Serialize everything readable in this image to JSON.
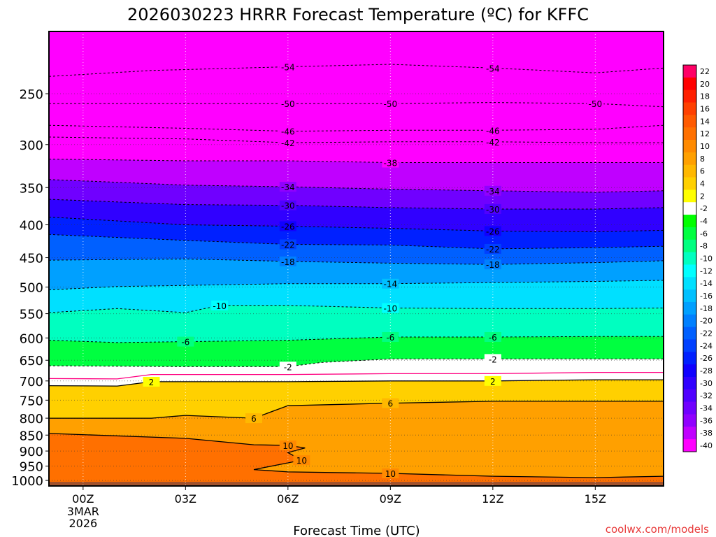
{
  "chart_data": {
    "type": "heatmap",
    "title": "2026030223 HRRR Forecast Temperature (ºC) for KFFC",
    "xlabel": "Forecast Time (UTC)",
    "ylabel": "",
    "credit": "coolwx.com/models",
    "x_ticks": [
      {
        "hour": 0,
        "label": "00Z",
        "sub": [
          "3MAR",
          "2026"
        ]
      },
      {
        "hour": 3,
        "label": "03Z",
        "sub": []
      },
      {
        "hour": 6,
        "label": "06Z",
        "sub": []
      },
      {
        "hour": 9,
        "label": "09Z",
        "sub": []
      },
      {
        "hour": 12,
        "label": "12Z",
        "sub": []
      },
      {
        "hour": 15,
        "label": "15Z",
        "sub": []
      }
    ],
    "xlim": [
      -1,
      17
    ],
    "y_ticks": [
      250,
      300,
      350,
      400,
      450,
      500,
      550,
      600,
      650,
      700,
      750,
      800,
      850,
      900,
      950,
      1000
    ],
    "ylim_hpa": [
      200,
      1020
    ],
    "colorbar": {
      "labels": [
        "22",
        "20",
        "18",
        "16",
        "14",
        "12",
        "10",
        "8",
        "6",
        "4",
        "2",
        "-2",
        "-4",
        "-6",
        "-8",
        "-10",
        "-12",
        "-14",
        "-16",
        "-18",
        "-20",
        "-22",
        "-24",
        "-26",
        "-28",
        "-30",
        "-32",
        "-34",
        "-36",
        "-38",
        "-40"
      ],
      "colors": [
        "#ff0066",
        "#ff0000",
        "#ff2000",
        "#ff4000",
        "#ff5a00",
        "#ff7000",
        "#ff8a00",
        "#ffa000",
        "#ffb800",
        "#ffd000",
        "#ffff00",
        "#ffffff",
        "#00ff00",
        "#00ff40",
        "#00ff80",
        "#00ffc0",
        "#00ffff",
        "#00e0ff",
        "#00c0ff",
        "#00a0ff",
        "#0080ff",
        "#0060ff",
        "#0040ff",
        "#0020ff",
        "#1000ff",
        "#3000ff",
        "#5000ff",
        "#7000ff",
        "#9000ff",
        "#c000ff",
        "#ff00ff"
      ]
    },
    "series": [
      {
        "level": -54,
        "labels": [
          "-54",
          "-54"
        ],
        "points": [
          [
            -1,
            235
          ],
          [
            2,
            230
          ],
          [
            6,
            227
          ],
          [
            9,
            225
          ],
          [
            12,
            228
          ],
          [
            15,
            232
          ],
          [
            17,
            228
          ]
        ]
      },
      {
        "level": -50,
        "labels": [
          "-50",
          "-50",
          "-50"
        ],
        "points": [
          [
            -1,
            259
          ],
          [
            3,
            259
          ],
          [
            6,
            259
          ],
          [
            9,
            259
          ],
          [
            12,
            258
          ],
          [
            15,
            259
          ],
          [
            17,
            262
          ]
        ]
      },
      {
        "level": -46,
        "labels": [
          "-46",
          "-46"
        ],
        "points": [
          [
            -1,
            280
          ],
          [
            3,
            283
          ],
          [
            6,
            286
          ],
          [
            9,
            285
          ],
          [
            12,
            285
          ],
          [
            15,
            284
          ],
          [
            17,
            280
          ]
        ]
      },
      {
        "level": -42,
        "labels": [
          "-42",
          "-42"
        ],
        "points": [
          [
            -1,
            292
          ],
          [
            3,
            294
          ],
          [
            6,
            298
          ],
          [
            9,
            297
          ],
          [
            12,
            297
          ],
          [
            15,
            298
          ],
          [
            17,
            298
          ]
        ]
      },
      {
        "level": -38,
        "labels": [
          "-38"
        ],
        "points": [
          [
            -1,
            316
          ],
          [
            3,
            318
          ],
          [
            6,
            318
          ],
          [
            9,
            320
          ],
          [
            12,
            320
          ],
          [
            15,
            320
          ],
          [
            17,
            320
          ]
        ]
      },
      {
        "level": -34,
        "labels": [
          "-34",
          "-34"
        ],
        "points": [
          [
            -1,
            340
          ],
          [
            3,
            347
          ],
          [
            6,
            349
          ],
          [
            9,
            352
          ],
          [
            12,
            354
          ],
          [
            15,
            356
          ],
          [
            17,
            354
          ]
        ]
      },
      {
        "level": -30,
        "labels": [
          "-30",
          "-30"
        ],
        "points": [
          [
            -1,
            365
          ],
          [
            3,
            372
          ],
          [
            6,
            373
          ],
          [
            9,
            376
          ],
          [
            12,
            378
          ],
          [
            15,
            378
          ],
          [
            17,
            376
          ]
        ]
      },
      {
        "level": -26,
        "labels": [
          "-26",
          "-26"
        ],
        "points": [
          [
            -1,
            389
          ],
          [
            3,
            400
          ],
          [
            6,
            402
          ],
          [
            9,
            405
          ],
          [
            12,
            409
          ],
          [
            15,
            410
          ],
          [
            17,
            408
          ]
        ]
      },
      {
        "level": -22,
        "labels": [
          "-22",
          "-22"
        ],
        "points": [
          [
            -1,
            414
          ],
          [
            3,
            423
          ],
          [
            6,
            429
          ],
          [
            9,
            430
          ],
          [
            12,
            436
          ],
          [
            15,
            434
          ],
          [
            17,
            432
          ]
        ]
      },
      {
        "level": -18,
        "labels": [
          "-18",
          "-18"
        ],
        "points": [
          [
            -1,
            454
          ],
          [
            3,
            452
          ],
          [
            6,
            456
          ],
          [
            9,
            459
          ],
          [
            12,
            461
          ],
          [
            15,
            458
          ],
          [
            17,
            455
          ]
        ]
      },
      {
        "level": -14,
        "labels": [
          "-14"
        ],
        "points": [
          [
            -1,
            505
          ],
          [
            1,
            499
          ],
          [
            3,
            497
          ],
          [
            6,
            494
          ],
          [
            9,
            494
          ],
          [
            12,
            492
          ],
          [
            15,
            490
          ],
          [
            17,
            488
          ]
        ]
      },
      {
        "level": -10,
        "labels": [
          "-10",
          "-10"
        ],
        "points": [
          [
            -1,
            548
          ],
          [
            1,
            540
          ],
          [
            3,
            548
          ],
          [
            4,
            534
          ],
          [
            6,
            534
          ],
          [
            9,
            539
          ],
          [
            12,
            540
          ],
          [
            15,
            540
          ],
          [
            17,
            539
          ]
        ]
      },
      {
        "level": -6,
        "labels": [
          "-6",
          "-6",
          "-6"
        ],
        "points": [
          [
            -1,
            605
          ],
          [
            1,
            610
          ],
          [
            3,
            608
          ],
          [
            6,
            605
          ],
          [
            9,
            598
          ],
          [
            12,
            598
          ],
          [
            15,
            597
          ],
          [
            17,
            597
          ]
        ]
      },
      {
        "level": -2,
        "labels": [
          "-2",
          "-2"
        ],
        "points": [
          [
            -1,
            663
          ],
          [
            3,
            665
          ],
          [
            6,
            665
          ],
          [
            7,
            655
          ],
          [
            9,
            647
          ],
          [
            12,
            647
          ],
          [
            15,
            647
          ],
          [
            17,
            647
          ]
        ]
      },
      {
        "level": 2,
        "labels": [
          "2",
          "2"
        ],
        "points": [
          [
            -1,
            712
          ],
          [
            1,
            713
          ],
          [
            2,
            702
          ],
          [
            6,
            702
          ],
          [
            9,
            700
          ],
          [
            12,
            700
          ],
          [
            15,
            697
          ],
          [
            17,
            697
          ]
        ]
      },
      {
        "level": 6,
        "labels": [
          "6",
          "6"
        ],
        "points": [
          [
            -1,
            800
          ],
          [
            2,
            800
          ],
          [
            3,
            792
          ],
          [
            5,
            800
          ],
          [
            6,
            765
          ],
          [
            9,
            758
          ],
          [
            12,
            753
          ],
          [
            15,
            753
          ],
          [
            17,
            753
          ]
        ]
      },
      {
        "level": 10,
        "labels": [
          "10",
          "10",
          "10"
        ],
        "points": [
          [
            -1,
            845
          ],
          [
            3,
            860
          ],
          [
            5,
            880
          ],
          [
            6,
            882
          ],
          [
            6.5,
            890
          ],
          [
            6,
            905
          ],
          [
            6.4,
            930
          ],
          [
            5,
            962
          ],
          [
            6,
            970
          ],
          [
            9,
            975
          ],
          [
            12,
            985
          ],
          [
            15,
            990
          ],
          [
            17,
            985
          ]
        ]
      }
    ]
  }
}
